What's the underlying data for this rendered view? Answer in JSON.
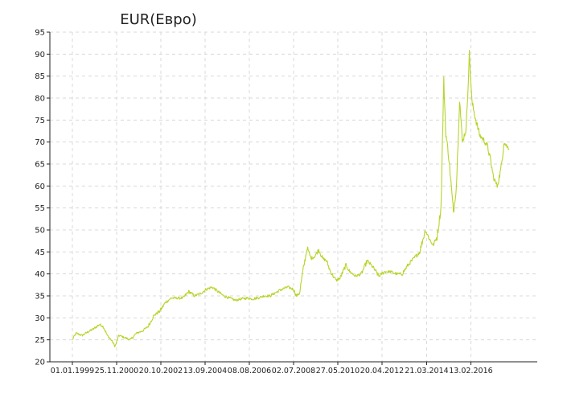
{
  "chart_data": {
    "type": "line",
    "title": "EUR(Евро)",
    "xlabel": "",
    "ylabel": "",
    "ylim": [
      20,
      95
    ],
    "y_ticks": [
      20,
      25,
      30,
      35,
      40,
      45,
      50,
      55,
      60,
      65,
      70,
      75,
      80,
      85,
      90,
      95
    ],
    "x_tick_labels": [
      "01.01.1999",
      "25.11.2000",
      "20.10.2002",
      "13.09.2004",
      "08.08.2006",
      "02.07.2008",
      "27.05.2010",
      "20.04.2012",
      "21.03.2014",
      "13.02.2016"
    ],
    "x_range": [
      "1999-01-01",
      "2017-10-01"
    ],
    "grid": true,
    "legend": "none",
    "line_color": "#b5d52a",
    "series": [
      {
        "points": [
          [
            "1999-01-01",
            25.0
          ],
          [
            "1999-03-01",
            26.5
          ],
          [
            "1999-06-01",
            26.0
          ],
          [
            "1999-09-01",
            26.8
          ],
          [
            "1999-12-01",
            27.5
          ],
          [
            "2000-03-01",
            28.5
          ],
          [
            "2000-05-01",
            28.0
          ],
          [
            "2000-07-01",
            26.0
          ],
          [
            "2000-09-01",
            25.0
          ],
          [
            "2000-11-01",
            23.5
          ],
          [
            "2001-01-01",
            26.0
          ],
          [
            "2001-04-01",
            25.5
          ],
          [
            "2001-07-01",
            25.0
          ],
          [
            "2001-10-01",
            26.5
          ],
          [
            "2002-01-01",
            27.0
          ],
          [
            "2002-04-01",
            28.0
          ],
          [
            "2002-07-01",
            30.5
          ],
          [
            "2002-10-01",
            31.5
          ],
          [
            "2003-01-01",
            33.5
          ],
          [
            "2003-04-01",
            34.5
          ],
          [
            "2003-07-01",
            34.5
          ],
          [
            "2003-10-01",
            34.5
          ],
          [
            "2004-01-01",
            36.0
          ],
          [
            "2004-04-01",
            35.0
          ],
          [
            "2004-07-01",
            35.5
          ],
          [
            "2004-10-01",
            36.5
          ],
          [
            "2005-01-01",
            37.0
          ],
          [
            "2005-04-01",
            36.0
          ],
          [
            "2005-07-01",
            35.0
          ],
          [
            "2005-10-01",
            34.5
          ],
          [
            "2006-01-01",
            34.0
          ],
          [
            "2006-04-01",
            34.3
          ],
          [
            "2006-07-01",
            34.5
          ],
          [
            "2006-10-01",
            34.3
          ],
          [
            "2007-01-01",
            34.6
          ],
          [
            "2007-04-01",
            35.0
          ],
          [
            "2007-07-01",
            35.0
          ],
          [
            "2007-10-01",
            35.8
          ],
          [
            "2008-01-01",
            36.5
          ],
          [
            "2008-04-01",
            37.0
          ],
          [
            "2008-07-01",
            36.5
          ],
          [
            "2008-08-15",
            35.0
          ],
          [
            "2008-10-01",
            35.5
          ],
          [
            "2008-12-01",
            41.0
          ],
          [
            "2009-02-01",
            46.0
          ],
          [
            "2009-04-01",
            43.5
          ],
          [
            "2009-06-01",
            44.0
          ],
          [
            "2009-08-01",
            45.5
          ],
          [
            "2009-10-01",
            43.5
          ],
          [
            "2009-12-01",
            43.0
          ],
          [
            "2010-02-01",
            40.5
          ],
          [
            "2010-05-01",
            38.5
          ],
          [
            "2010-07-01",
            39.0
          ],
          [
            "2010-10-01",
            42.0
          ],
          [
            "2010-12-01",
            40.5
          ],
          [
            "2011-03-01",
            39.5
          ],
          [
            "2011-06-01",
            40.0
          ],
          [
            "2011-09-01",
            43.0
          ],
          [
            "2011-12-01",
            41.5
          ],
          [
            "2012-03-01",
            39.5
          ],
          [
            "2012-06-01",
            40.5
          ],
          [
            "2012-09-01",
            40.5
          ],
          [
            "2012-12-01",
            40.0
          ],
          [
            "2013-03-01",
            40.0
          ],
          [
            "2013-06-01",
            42.0
          ],
          [
            "2013-09-01",
            43.5
          ],
          [
            "2013-12-01",
            45.0
          ],
          [
            "2014-03-01",
            50.0
          ],
          [
            "2014-05-01",
            48.0
          ],
          [
            "2014-07-01",
            46.5
          ],
          [
            "2014-09-01",
            48.5
          ],
          [
            "2014-11-01",
            55.0
          ],
          [
            "2014-12-15",
            84.0
          ],
          [
            "2015-01-15",
            72.0
          ],
          [
            "2015-03-01",
            67.0
          ],
          [
            "2015-05-15",
            54.0
          ],
          [
            "2015-07-01",
            60.0
          ],
          [
            "2015-08-20",
            80.0
          ],
          [
            "2015-10-01",
            70.0
          ],
          [
            "2015-12-01",
            73.0
          ],
          [
            "2016-01-20",
            90.0
          ],
          [
            "2016-03-01",
            79.0
          ],
          [
            "2016-05-01",
            75.0
          ],
          [
            "2016-07-01",
            71.5
          ],
          [
            "2016-09-01",
            70.5
          ],
          [
            "2016-11-01",
            69.0
          ],
          [
            "2016-12-15",
            66.0
          ],
          [
            "2017-02-01",
            62.0
          ],
          [
            "2017-04-01",
            60.0
          ],
          [
            "2017-06-01",
            64.0
          ],
          [
            "2017-07-15",
            70.0
          ],
          [
            "2017-09-01",
            69.0
          ],
          [
            "2017-10-01",
            68.5
          ]
        ]
      }
    ]
  }
}
